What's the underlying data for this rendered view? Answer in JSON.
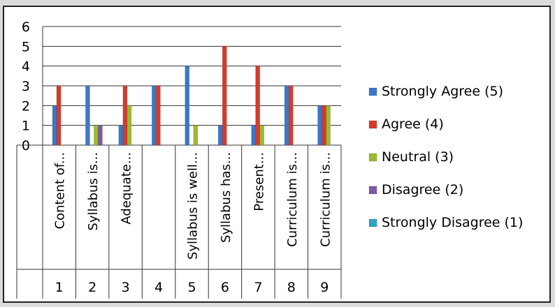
{
  "chart_data": {
    "type": "bar",
    "title": "",
    "xlabel": "",
    "ylabel": "",
    "ylim": [
      0,
      6
    ],
    "yticks": [
      "0",
      "1",
      "2",
      "3",
      "4",
      "5",
      "6"
    ],
    "grid": true,
    "legend_position": "right",
    "categories": [
      "1",
      "2",
      "3",
      "4",
      "5",
      "6",
      "7",
      "8",
      "9"
    ],
    "category_labels": [
      "Content of...",
      "Syllabus is...",
      "Adequate...",
      "",
      "Syllabus is well...",
      "Syllabus has...",
      "Present...",
      "Curriculum is...",
      "Curriculum is..."
    ],
    "series": [
      {
        "name": "Strongly Agree (5)",
        "color": "#3b78c9",
        "values": [
          2,
          3,
          1,
          3,
          4,
          1,
          1,
          3,
          2
        ]
      },
      {
        "name": "Agree (4)",
        "color": "#d63a2c",
        "values": [
          3,
          0,
          3,
          3,
          0,
          5,
          4,
          3,
          2
        ]
      },
      {
        "name": "Neutral (3)",
        "color": "#9bbb2e",
        "values": [
          0,
          1,
          2,
          0,
          1,
          0,
          1,
          0,
          2
        ]
      },
      {
        "name": "Disagree (2)",
        "color": "#7d5aa8",
        "values": [
          0,
          1,
          0,
          0,
          0,
          0,
          0,
          0,
          0
        ]
      },
      {
        "name": "Strongly Disagree (1)",
        "color": "#2fa4c8",
        "values": [
          0,
          0,
          0,
          0,
          0,
          0,
          0,
          0,
          0
        ]
      }
    ]
  }
}
